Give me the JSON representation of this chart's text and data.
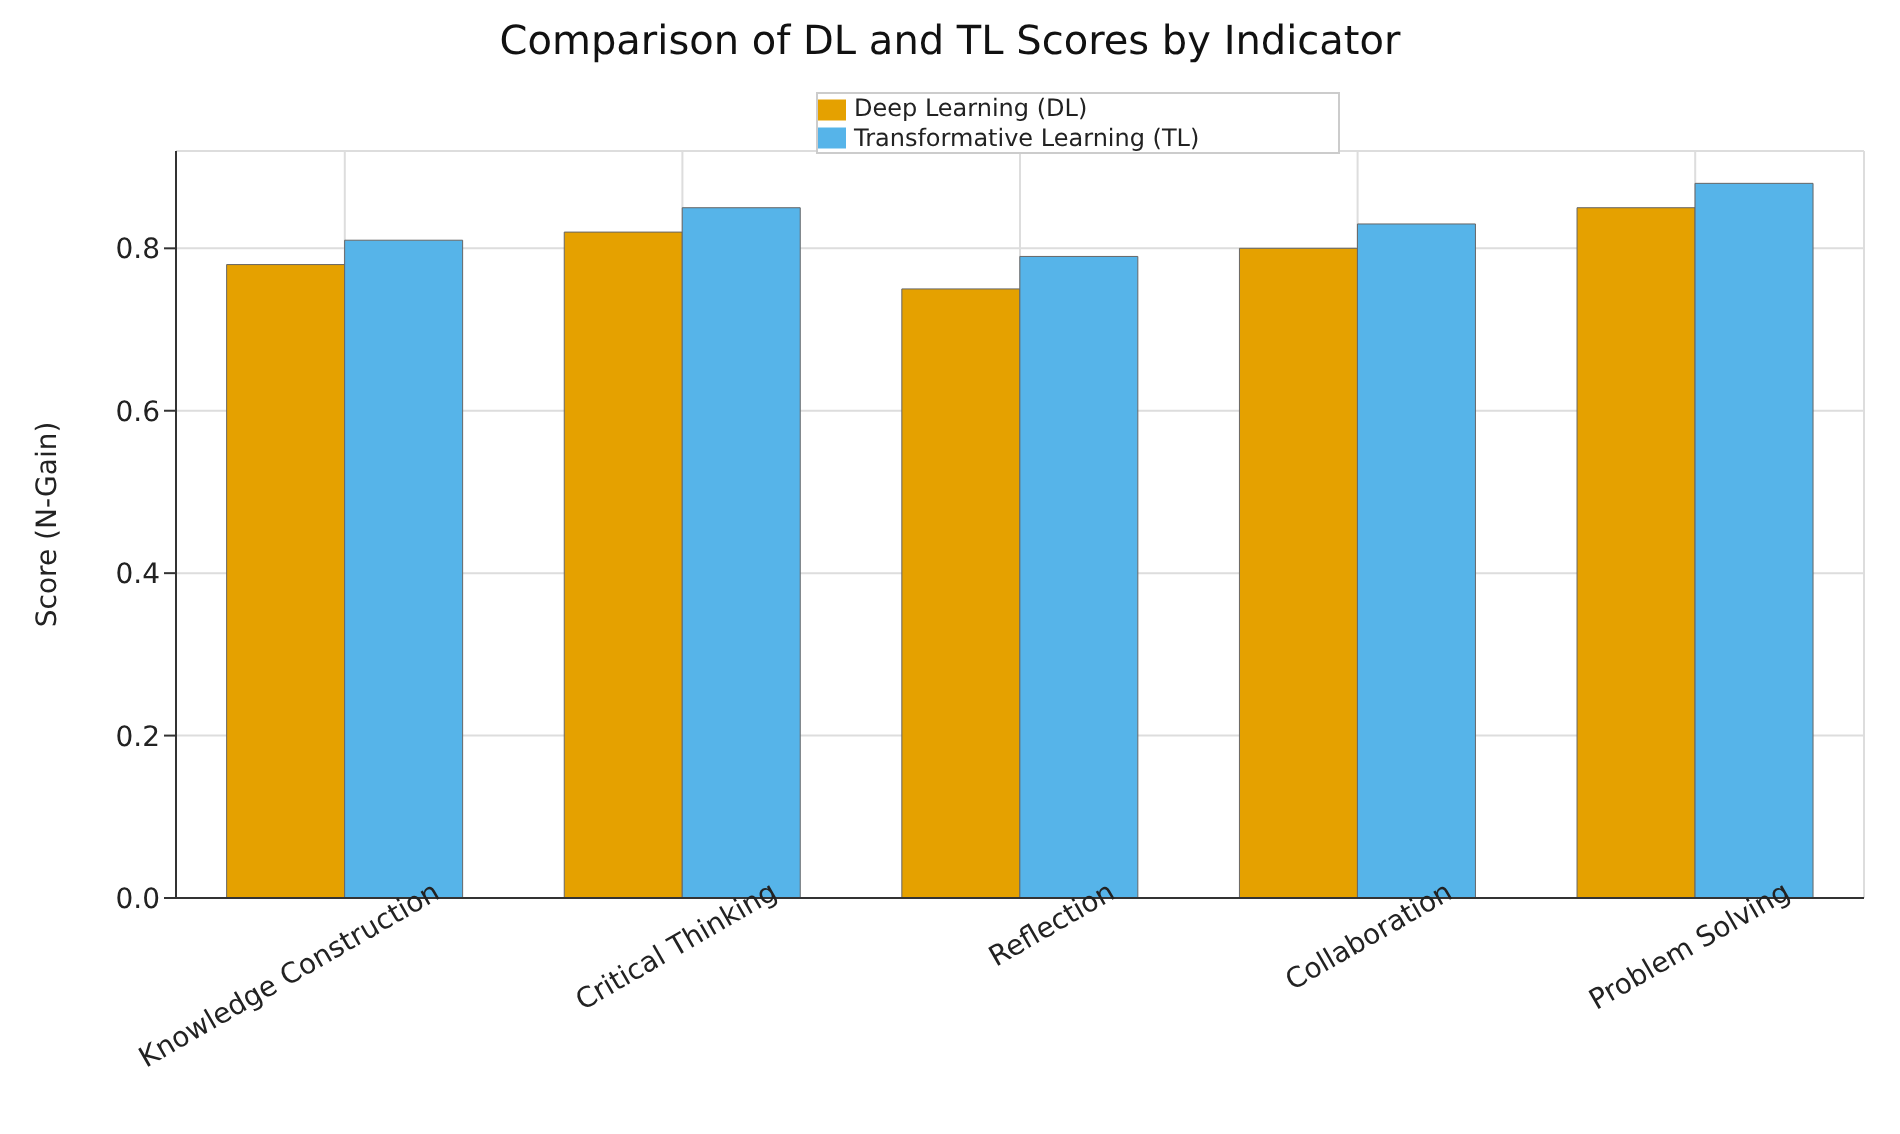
{
  "chart_data": {
    "type": "bar",
    "title": "Comparison of DL and TL Scores by Indicator",
    "ylabel": "Score (N-Gain)",
    "categories": [
      "Knowledge Construction",
      "Critical Thinking",
      "Reflection",
      "Collaboration",
      "Problem Solving"
    ],
    "series": [
      {
        "name": "Deep Learning (DL)",
        "color": "#e5a100",
        "values": [
          0.78,
          0.82,
          0.75,
          0.8,
          0.85
        ]
      },
      {
        "name": "Transformative Learning (TL)",
        "color": "#56b4e9",
        "values": [
          0.81,
          0.85,
          0.79,
          0.83,
          0.88
        ]
      }
    ],
    "ylim": [
      0,
      0.92
    ],
    "yticks": [
      {
        "value": 0,
        "label": "0.0"
      },
      0.2,
      0.4,
      0.6,
      0.8
    ],
    "grid": true,
    "legend": "top"
  }
}
